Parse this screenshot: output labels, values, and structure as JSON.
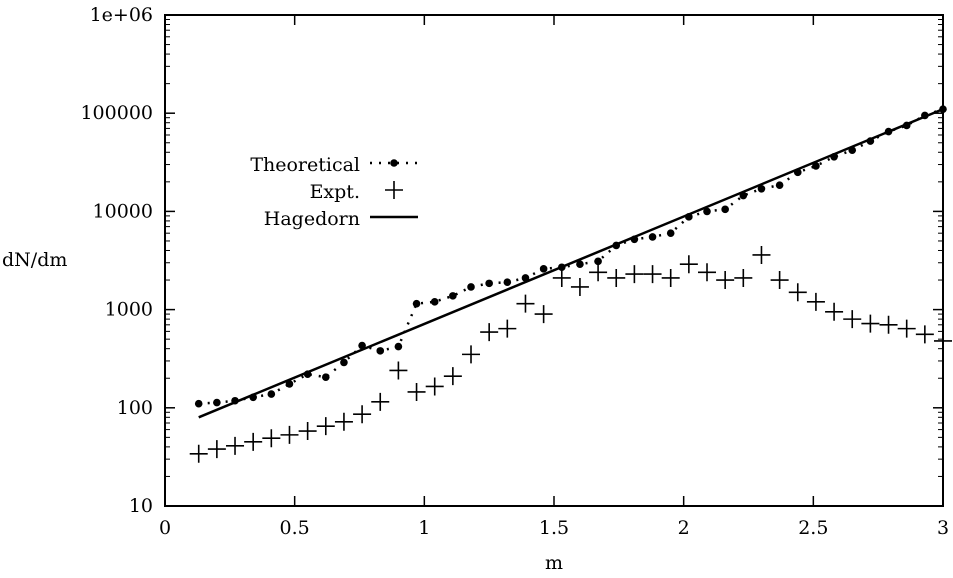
{
  "chart_data": {
    "type": "scatter",
    "title": "",
    "xlabel": "m",
    "ylabel": "dN/dm",
    "xlim": [
      0,
      3
    ],
    "ylim": [
      10,
      1000000
    ],
    "yscale": "log",
    "grid": false,
    "legend_position": "upper-left",
    "x_ticks": [
      0,
      0.5,
      1,
      1.5,
      2,
      2.5,
      3
    ],
    "x_tick_labels": [
      "0",
      "0.5",
      "1",
      "1.5",
      "2",
      "2.5",
      "3"
    ],
    "y_ticks": [
      10,
      100,
      1000,
      10000,
      100000,
      1000000
    ],
    "y_tick_labels": [
      "10",
      "100",
      "1000",
      "10000",
      "100000",
      "1e+06"
    ],
    "series": [
      {
        "name": "Theoretical",
        "style": "dots-dashed",
        "x": [
          0.13,
          0.2,
          0.27,
          0.34,
          0.41,
          0.48,
          0.55,
          0.62,
          0.69,
          0.76,
          0.83,
          0.9,
          0.97,
          1.04,
          1.11,
          1.18,
          1.25,
          1.32,
          1.39,
          1.46,
          1.53,
          1.6,
          1.67,
          1.74,
          1.81,
          1.88,
          1.95,
          2.02,
          2.09,
          2.16,
          2.23,
          2.3,
          2.37,
          2.44,
          2.51,
          2.58,
          2.65,
          2.72,
          2.79,
          2.86,
          2.93,
          3.0
        ],
        "y": [
          110,
          113,
          118,
          128,
          138,
          175,
          220,
          205,
          290,
          430,
          380,
          420,
          1150,
          1200,
          1380,
          1700,
          1850,
          1900,
          2100,
          2600,
          2700,
          2900,
          3100,
          4500,
          5200,
          5500,
          6000,
          8800,
          10000,
          10500,
          14500,
          17000,
          18500,
          25000,
          29000,
          36000,
          42000,
          52000,
          65000,
          75000,
          95000,
          110000
        ]
      },
      {
        "name": "Expt.",
        "style": "plus",
        "x": [
          0.13,
          0.2,
          0.27,
          0.34,
          0.41,
          0.48,
          0.55,
          0.62,
          0.69,
          0.76,
          0.83,
          0.9,
          0.97,
          1.04,
          1.11,
          1.18,
          1.25,
          1.32,
          1.39,
          1.46,
          1.53,
          1.6,
          1.67,
          1.74,
          1.81,
          1.88,
          1.95,
          2.02,
          2.09,
          2.16,
          2.23,
          2.3,
          2.37,
          2.44,
          2.51,
          2.58,
          2.65,
          2.72,
          2.79,
          2.86,
          2.93,
          3.0
        ],
        "y": [
          34,
          38,
          41,
          45,
          49,
          53,
          58,
          65,
          72,
          86,
          115,
          240,
          145,
          165,
          210,
          350,
          590,
          640,
          1150,
          900,
          2100,
          1700,
          2400,
          2100,
          2300,
          2300,
          2100,
          2900,
          2400,
          2000,
          2100,
          3600,
          2000,
          1500,
          1200,
          950,
          800,
          720,
          700,
          640,
          560,
          480
        ]
      },
      {
        "name": "Hagedorn",
        "style": "solid-line",
        "x": [
          0.13,
          3.0
        ],
        "y": [
          80,
          110000
        ]
      }
    ]
  }
}
